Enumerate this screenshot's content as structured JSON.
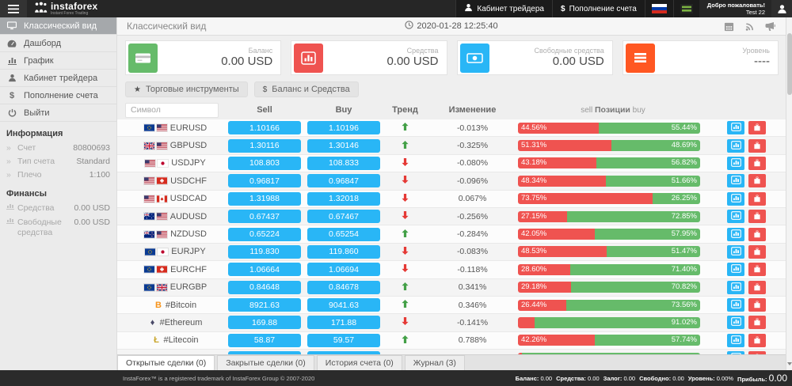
{
  "colors": {
    "blue": "#29b6f6",
    "red": "#ef5350",
    "green": "#66bb6a",
    "orange": "#ff5722"
  },
  "header": {
    "logo_text": "instaforex",
    "logo_tagline": "Instant Forex Trading",
    "nav": [
      {
        "label": "Кабинет трейдера",
        "icon": "user-icon"
      },
      {
        "label": "Пополнение счета",
        "icon": "dollar-icon"
      }
    ],
    "welcome_line1": "Добро пожаловать!",
    "welcome_line2": "Test 22"
  },
  "sidebar": {
    "menu": [
      {
        "label": "Классический вид",
        "icon": "desktop",
        "active": true
      },
      {
        "label": "Дашборд",
        "icon": "dashboard",
        "active": false
      },
      {
        "label": "График",
        "icon": "chart",
        "active": false
      },
      {
        "label": "Кабинет трейдера",
        "icon": "user",
        "active": false
      },
      {
        "label": "Пополнение счета",
        "icon": "dollar",
        "active": false
      },
      {
        "label": "Выйти",
        "icon": "power",
        "active": false
      }
    ],
    "sections": [
      {
        "title": "Информация",
        "icon": "chevrons",
        "rows": [
          {
            "label": "Счет",
            "value": "80800693"
          },
          {
            "label": "Тип счета",
            "value": "Standard"
          },
          {
            "label": "Плечо",
            "value": "1:100"
          }
        ]
      },
      {
        "title": "Финансы",
        "icon": "mini-chart",
        "rows": [
          {
            "label": "Средства",
            "value": "0.00 USD"
          },
          {
            "label": "Свободные средства",
            "value": "0.00 USD"
          }
        ]
      }
    ]
  },
  "main": {
    "page_title": "Классический вид",
    "timestamp": "2020-01-28 12:25:40",
    "cards": [
      {
        "label": "Баланс",
        "value": "0.00 USD",
        "icon": "credit-card",
        "color": "#66bb6a"
      },
      {
        "label": "Средства",
        "value": "0.00 USD",
        "icon": "bar-chart",
        "color": "#ef5350"
      },
      {
        "label": "Свободные средства",
        "value": "0.00 USD",
        "icon": "banknote",
        "color": "#29b6f6"
      },
      {
        "label": "Уровень",
        "value": "----",
        "icon": "list",
        "color": "#ff5722"
      }
    ],
    "filter_buttons": [
      {
        "label": "Торговые инструменты",
        "icon": "star"
      },
      {
        "label": "Баланс и Средства",
        "icon": "dollar"
      }
    ],
    "table": {
      "search_placeholder": "Символ",
      "col_sell": "Sell",
      "col_buy": "Buy",
      "col_trend": "Тренд",
      "col_change": "Изменение",
      "col_positions_left": "sell",
      "col_positions_mid": "Позиции",
      "col_positions_right": "buy",
      "rows": [
        {
          "symbol": "EURUSD",
          "flags": [
            "eu",
            "us"
          ],
          "sell": "1.10166",
          "buy": "1.10196",
          "trend": "up",
          "change": "-0.013%",
          "sell_pct": 44.56,
          "sell_label": "44.56%",
          "buy_pct": 55.44,
          "buy_label": "55.44%"
        },
        {
          "symbol": "GBPUSD",
          "flags": [
            "gb",
            "us"
          ],
          "sell": "1.30116",
          "buy": "1.30146",
          "trend": "up",
          "change": "-0.325%",
          "sell_pct": 51.31,
          "sell_label": "51.31%",
          "buy_pct": 48.69,
          "buy_label": "48.69%"
        },
        {
          "symbol": "USDJPY",
          "flags": [
            "us",
            "jp"
          ],
          "sell": "108.803",
          "buy": "108.833",
          "trend": "down",
          "change": "-0.080%",
          "sell_pct": 43.18,
          "sell_label": "43.18%",
          "buy_pct": 56.82,
          "buy_label": "56.82%"
        },
        {
          "symbol": "USDCHF",
          "flags": [
            "us",
            "ch"
          ],
          "sell": "0.96817",
          "buy": "0.96847",
          "trend": "down",
          "change": "-0.096%",
          "sell_pct": 48.34,
          "sell_label": "48.34%",
          "buy_pct": 51.66,
          "buy_label": "51.66%"
        },
        {
          "symbol": "USDCAD",
          "flags": [
            "us",
            "ca"
          ],
          "sell": "1.31988",
          "buy": "1.32018",
          "trend": "down",
          "change": "0.067%",
          "sell_pct": 73.75,
          "sell_label": "73.75%",
          "buy_pct": 26.25,
          "buy_label": "26.25%"
        },
        {
          "symbol": "AUDUSD",
          "flags": [
            "au",
            "us"
          ],
          "sell": "0.67437",
          "buy": "0.67467",
          "trend": "down",
          "change": "-0.256%",
          "sell_pct": 27.15,
          "sell_label": "27.15%",
          "buy_pct": 72.85,
          "buy_label": "72.85%"
        },
        {
          "symbol": "NZDUSD",
          "flags": [
            "nz",
            "us"
          ],
          "sell": "0.65224",
          "buy": "0.65254",
          "trend": "up",
          "change": "-0.284%",
          "sell_pct": 42.05,
          "sell_label": "42.05%",
          "buy_pct": 57.95,
          "buy_label": "57.95%"
        },
        {
          "symbol": "EURJPY",
          "flags": [
            "eu",
            "jp"
          ],
          "sell": "119.830",
          "buy": "119.860",
          "trend": "down",
          "change": "-0.083%",
          "sell_pct": 48.53,
          "sell_label": "48.53%",
          "buy_pct": 51.47,
          "buy_label": "51.47%"
        },
        {
          "symbol": "EURCHF",
          "flags": [
            "eu",
            "ch"
          ],
          "sell": "1.06664",
          "buy": "1.06694",
          "trend": "down",
          "change": "-0.118%",
          "sell_pct": 28.6,
          "sell_label": "28.60%",
          "buy_pct": 71.4,
          "buy_label": "71.40%"
        },
        {
          "symbol": "EURGBP",
          "flags": [
            "eu",
            "gb"
          ],
          "sell": "0.84648",
          "buy": "0.84678",
          "trend": "up",
          "change": "0.341%",
          "sell_pct": 29.18,
          "sell_label": "29.18%",
          "buy_pct": 70.82,
          "buy_label": "70.82%"
        },
        {
          "symbol": "#Bitcoin",
          "crypto": "btc",
          "sell": "8921.63",
          "buy": "9041.63",
          "trend": "up",
          "change": "0.346%",
          "sell_pct": 26.44,
          "sell_label": "26.44%",
          "buy_pct": 73.56,
          "buy_label": "73.56%"
        },
        {
          "symbol": "#Ethereum",
          "crypto": "eth",
          "sell": "169.88",
          "buy": "171.88",
          "trend": "down",
          "change": "-0.141%",
          "sell_pct": 8.98,
          "sell_label": "",
          "buy_pct": 91.02,
          "buy_label": "91.02%"
        },
        {
          "symbol": "#Litecoin",
          "crypto": "ltc",
          "sell": "58.87",
          "buy": "59.57",
          "trend": "up",
          "change": "0.788%",
          "sell_pct": 42.26,
          "sell_label": "42.26%",
          "buy_pct": 57.74,
          "buy_label": "57.74%"
        },
        {
          "symbol": "",
          "crypto": "generic",
          "sell": "",
          "buy": "",
          "trend": "",
          "change": "",
          "sell_pct": 2.2,
          "sell_label": "",
          "buy_pct": 97.8,
          "buy_label": "",
          "partial": true
        }
      ]
    },
    "tabs": [
      {
        "label": "Открытые сделки (0)",
        "active": true
      },
      {
        "label": "Закрытые сделки (0)",
        "active": false
      },
      {
        "label": "История счета (0)",
        "active": false
      },
      {
        "label": "Журнал (3)",
        "active": false
      }
    ]
  },
  "footer": {
    "left": "InstaForex™ is a registered trademark of InstaForex Group © 2007-2020",
    "stats": [
      {
        "label": "Баланс:",
        "value": "0.00"
      },
      {
        "label": "Средства:",
        "value": "0.00"
      },
      {
        "label": "Залог:",
        "value": "0.00"
      },
      {
        "label": "Свободно:",
        "value": "0.00"
      },
      {
        "label": "Уровень:",
        "value": "0.00%"
      },
      {
        "label": "Прибыль:",
        "value": "0.00",
        "big": true
      }
    ]
  }
}
